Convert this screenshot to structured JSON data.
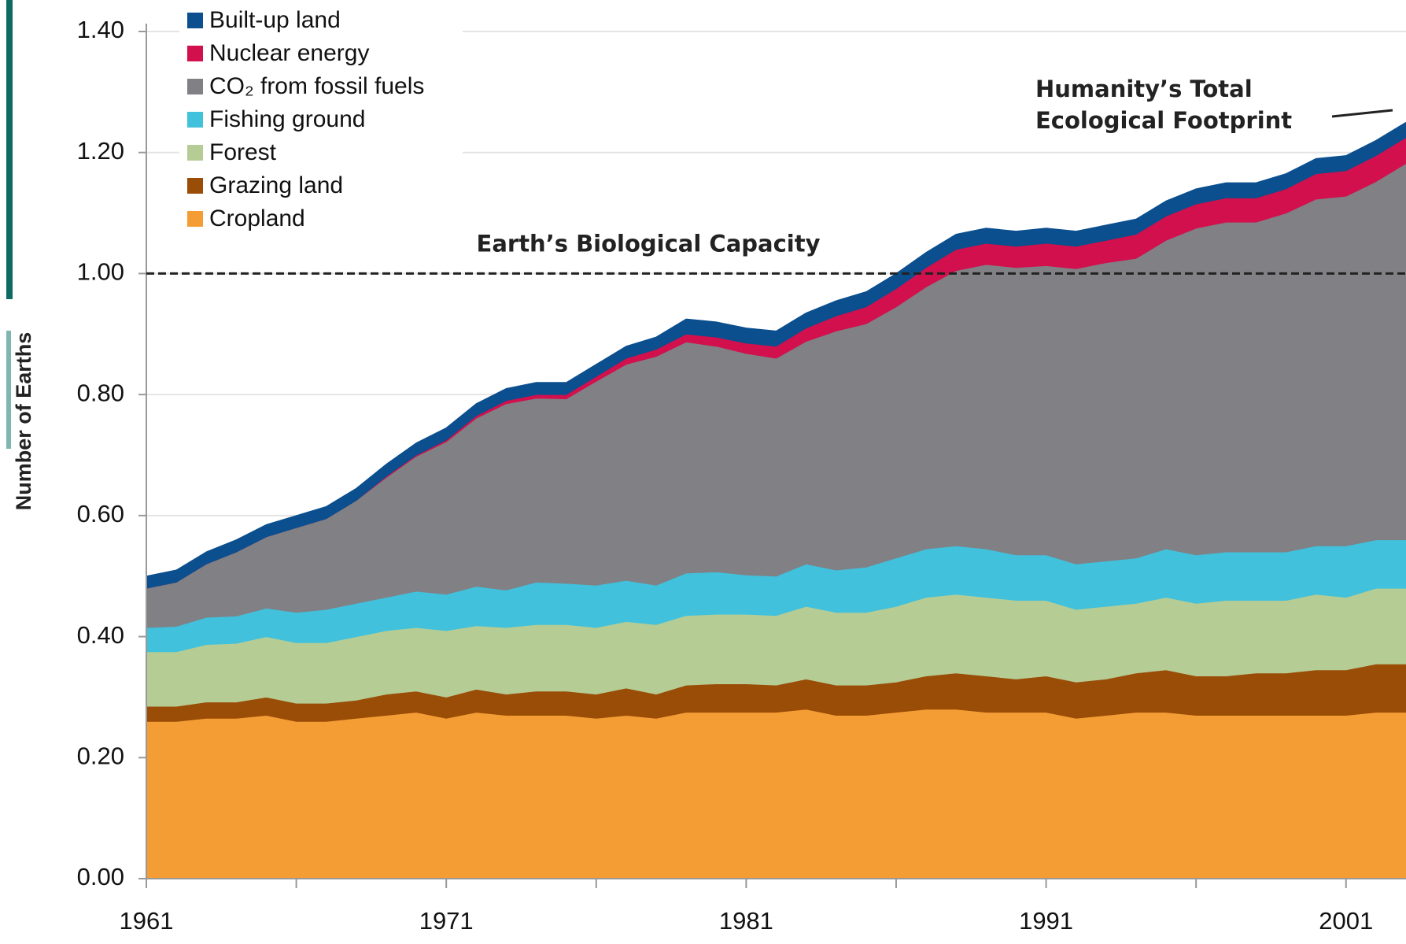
{
  "chart_data": {
    "type": "stacked_area",
    "y_label": "Number of Earths",
    "x": [
      1961,
      1962,
      1963,
      1964,
      1965,
      1966,
      1967,
      1968,
      1969,
      1970,
      1971,
      1972,
      1973,
      1974,
      1975,
      1976,
      1977,
      1978,
      1979,
      1980,
      1981,
      1982,
      1983,
      1984,
      1985,
      1986,
      1987,
      1988,
      1989,
      1990,
      1991,
      1992,
      1993,
      1994,
      1995,
      1996,
      1997,
      1998,
      1999,
      2000,
      2001,
      2002,
      2003
    ],
    "series": [
      {
        "name": "Built-up land",
        "color": "#0b4f8e",
        "values": [
          0.02,
          0.02,
          0.02,
          0.02,
          0.02,
          0.02,
          0.02,
          0.02,
          0.02,
          0.02,
          0.02,
          0.02,
          0.02,
          0.02,
          0.02,
          0.02,
          0.02,
          0.02,
          0.025,
          0.025,
          0.025,
          0.025,
          0.025,
          0.025,
          0.025,
          0.025,
          0.025,
          0.025,
          0.025,
          0.025,
          0.025,
          0.025,
          0.025,
          0.025,
          0.025,
          0.025,
          0.025,
          0.025,
          0.025,
          0.025,
          0.025,
          0.025,
          0.025
        ]
      },
      {
        "name": "Nuclear energy",
        "color": "#d1104d",
        "values": [
          0,
          0,
          0,
          0,
          0,
          0,
          0,
          0,
          0.002,
          0.002,
          0.003,
          0.004,
          0.005,
          0.006,
          0.007,
          0.008,
          0.01,
          0.012,
          0.013,
          0.015,
          0.017,
          0.02,
          0.022,
          0.025,
          0.028,
          0.03,
          0.032,
          0.035,
          0.035,
          0.035,
          0.037,
          0.037,
          0.037,
          0.04,
          0.04,
          0.04,
          0.04,
          0.04,
          0.04,
          0.042,
          0.042,
          0.043,
          0.043
        ]
      },
      {
        "name": "CO₂ from fossil fuels",
        "color": "#808085",
        "values": [
          0.065,
          0.073,
          0.088,
          0.106,
          0.118,
          0.14,
          0.15,
          0.17,
          0.198,
          0.223,
          0.252,
          0.278,
          0.308,
          0.304,
          0.305,
          0.337,
          0.357,
          0.378,
          0.382,
          0.373,
          0.366,
          0.36,
          0.368,
          0.395,
          0.402,
          0.415,
          0.433,
          0.455,
          0.47,
          0.475,
          0.478,
          0.488,
          0.493,
          0.495,
          0.51,
          0.54,
          0.545,
          0.545,
          0.56,
          0.573,
          0.578,
          0.592,
          0.622
        ]
      },
      {
        "name": "Fishing ground",
        "color": "#41c1dc",
        "values": [
          0.04,
          0.042,
          0.045,
          0.045,
          0.047,
          0.05,
          0.055,
          0.055,
          0.055,
          0.06,
          0.06,
          0.065,
          0.062,
          0.07,
          0.068,
          0.07,
          0.068,
          0.065,
          0.07,
          0.07,
          0.065,
          0.065,
          0.07,
          0.07,
          0.075,
          0.08,
          0.08,
          0.08,
          0.08,
          0.075,
          0.075,
          0.075,
          0.075,
          0.075,
          0.08,
          0.08,
          0.08,
          0.08,
          0.08,
          0.08,
          0.085,
          0.08,
          0.08
        ]
      },
      {
        "name": "Forest",
        "color": "#b5cc95",
        "values": [
          0.09,
          0.09,
          0.095,
          0.097,
          0.1,
          0.1,
          0.1,
          0.105,
          0.105,
          0.105,
          0.11,
          0.105,
          0.11,
          0.11,
          0.11,
          0.11,
          0.11,
          0.115,
          0.115,
          0.115,
          0.115,
          0.115,
          0.12,
          0.12,
          0.12,
          0.125,
          0.13,
          0.13,
          0.13,
          0.13,
          0.125,
          0.12,
          0.12,
          0.115,
          0.12,
          0.12,
          0.125,
          0.12,
          0.12,
          0.125,
          0.12,
          0.125,
          0.125
        ]
      },
      {
        "name": "Grazing land",
        "color": "#9a4d07",
        "values": [
          0.025,
          0.025,
          0.027,
          0.027,
          0.03,
          0.03,
          0.03,
          0.03,
          0.035,
          0.035,
          0.035,
          0.038,
          0.035,
          0.04,
          0.04,
          0.04,
          0.045,
          0.04,
          0.045,
          0.047,
          0.047,
          0.045,
          0.05,
          0.05,
          0.05,
          0.05,
          0.055,
          0.06,
          0.06,
          0.055,
          0.06,
          0.06,
          0.06,
          0.065,
          0.07,
          0.065,
          0.065,
          0.07,
          0.07,
          0.075,
          0.075,
          0.08,
          0.08
        ]
      },
      {
        "name": "Cropland",
        "color": "#f59d35",
        "values": [
          0.26,
          0.26,
          0.265,
          0.265,
          0.27,
          0.26,
          0.26,
          0.265,
          0.27,
          0.275,
          0.265,
          0.275,
          0.27,
          0.27,
          0.27,
          0.265,
          0.27,
          0.265,
          0.275,
          0.275,
          0.275,
          0.275,
          0.28,
          0.27,
          0.27,
          0.275,
          0.28,
          0.28,
          0.275,
          0.275,
          0.275,
          0.265,
          0.27,
          0.275,
          0.275,
          0.27,
          0.27,
          0.27,
          0.27,
          0.27,
          0.27,
          0.275,
          0.275
        ]
      }
    ],
    "xlim": [
      1961,
      2003
    ],
    "ylim": [
      0,
      1.4
    ],
    "xticks": [
      1961,
      1971,
      1981,
      1991,
      2001
    ],
    "xminor": [
      1966,
      1976,
      1986,
      1996
    ],
    "yticks": [
      {
        "value": 0,
        "label": "0.00"
      },
      {
        "value": 0.2,
        "label": "0.20"
      },
      {
        "value": 0.4,
        "label": "0.40"
      },
      {
        "value": 0.6,
        "label": "0.60"
      },
      {
        "value": 0.8,
        "label": "0.80"
      },
      {
        "value": 1.0,
        "label": "1.00"
      },
      {
        "value": 1.2,
        "label": "1.20"
      },
      {
        "value": 1.4,
        "label": "1.40"
      }
    ],
    "grid": true,
    "hline": {
      "value": 1.0,
      "label": "Earth’s Biological Capacity"
    },
    "annotation": [
      "Humanity’s Total",
      "Ecological Footprint"
    ]
  }
}
